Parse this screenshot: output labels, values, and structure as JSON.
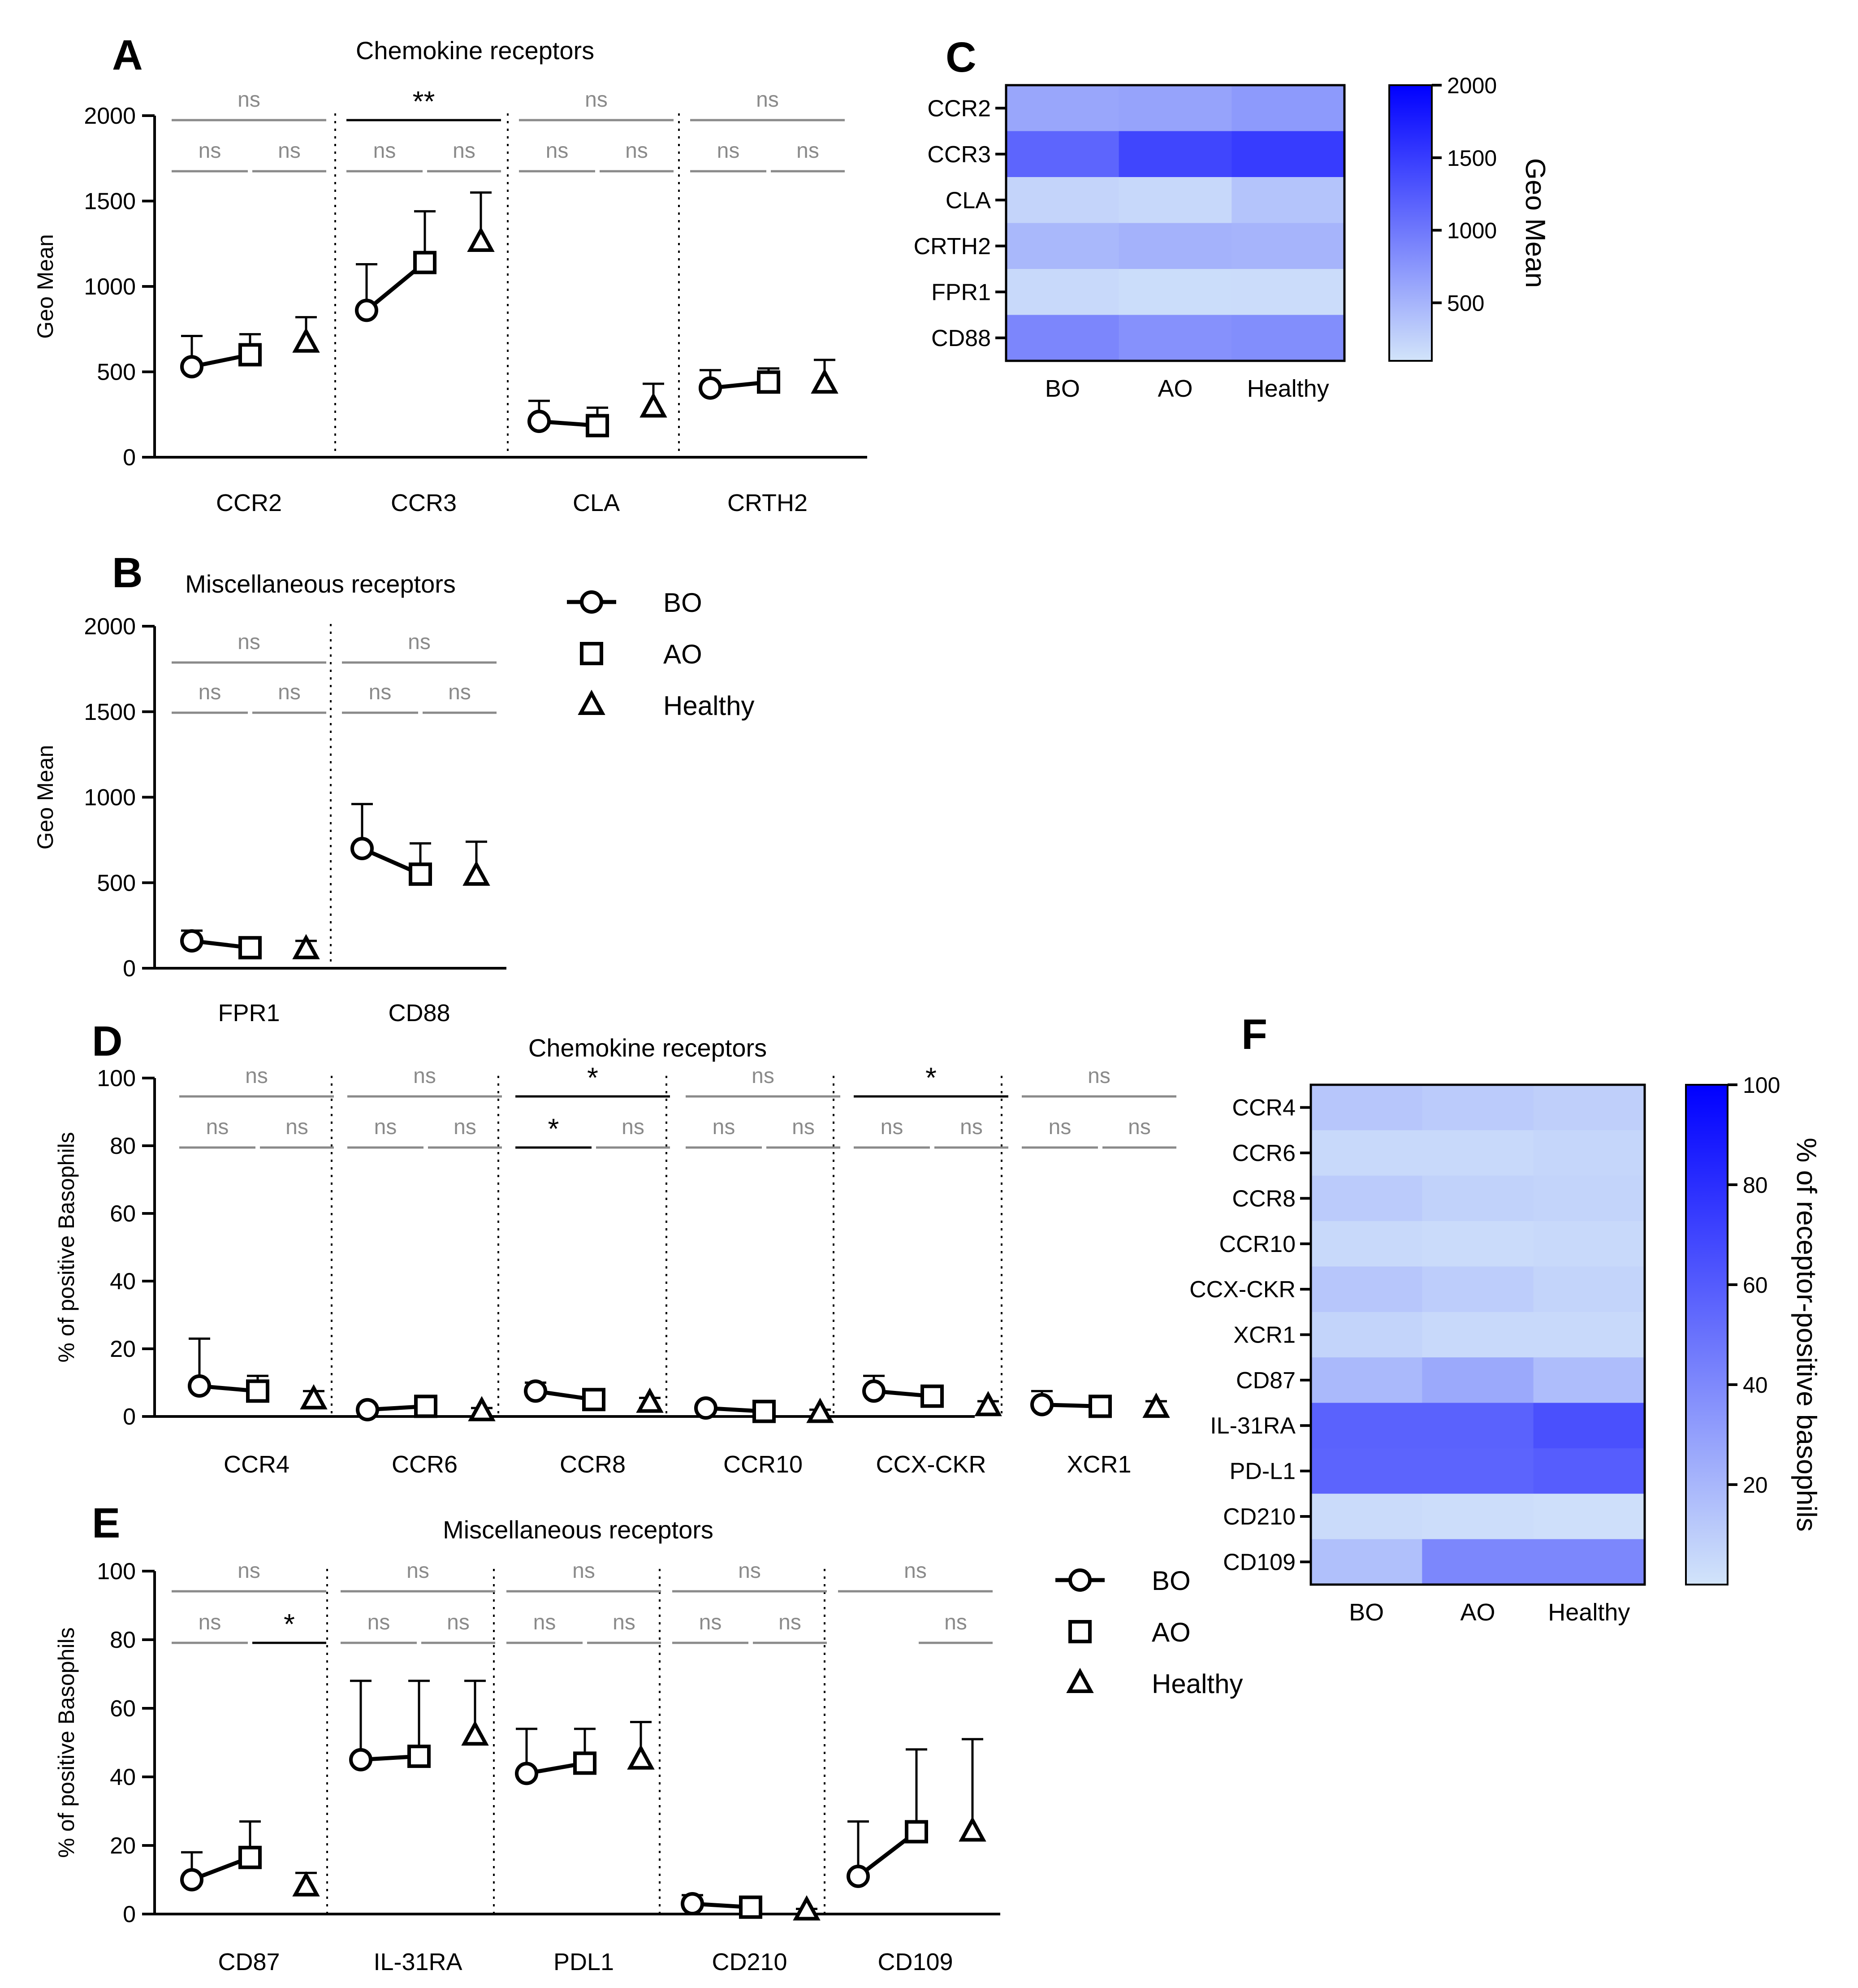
{
  "colors": {
    "heat_low": "#d2e4fa",
    "heat_high": "#0000ff",
    "sig_ns": "#8a8a8a"
  },
  "legend": {
    "items": [
      {
        "label": "BO",
        "marker": "circle"
      },
      {
        "label": "AO",
        "marker": "square"
      },
      {
        "label": "Healthy",
        "marker": "triangle"
      }
    ]
  },
  "chart_data": [
    {
      "panel": "A",
      "type": "scatter",
      "title": "Chemokine receptors",
      "ylabel": "Geo Mean",
      "ylim": [
        0,
        2000
      ],
      "yticks": [
        0,
        500,
        1000,
        1500,
        2000
      ],
      "groups": [
        {
          "name": "CCR2",
          "means": [
            530,
            600,
            670
          ],
          "errs": [
            710,
            720,
            820
          ],
          "sig": [
            {
              "pair": "BO-AO",
              "label": "ns"
            },
            {
              "pair": "AO-Healthy",
              "label": "ns"
            },
            {
              "pair": "BO-Healthy",
              "label": "ns"
            }
          ]
        },
        {
          "name": "CCR3",
          "means": [
            860,
            1140,
            1260
          ],
          "errs": [
            1130,
            1440,
            1550
          ],
          "sig": [
            {
              "pair": "BO-AO",
              "label": "ns"
            },
            {
              "pair": "AO-Healthy",
              "label": "ns"
            },
            {
              "pair": "BO-Healthy",
              "label": "**"
            }
          ]
        },
        {
          "name": "CLA",
          "means": [
            210,
            185,
            290
          ],
          "errs": [
            330,
            290,
            430
          ],
          "sig": [
            {
              "pair": "BO-AO",
              "label": "ns"
            },
            {
              "pair": "AO-Healthy",
              "label": "ns"
            },
            {
              "pair": "BO-Healthy",
              "label": "ns"
            }
          ]
        },
        {
          "name": "CRTH2",
          "means": [
            405,
            440,
            430
          ],
          "errs": [
            510,
            520,
            570
          ],
          "sig": [
            {
              "pair": "BO-AO",
              "label": "ns"
            },
            {
              "pair": "AO-Healthy",
              "label": "ns"
            },
            {
              "pair": "BO-Healthy",
              "label": "ns"
            }
          ]
        }
      ]
    },
    {
      "panel": "B",
      "type": "scatter",
      "title": "Miscellaneous receptors",
      "ylabel": "Geo Mean",
      "ylim": [
        0,
        2000
      ],
      "yticks": [
        0,
        500,
        1000,
        1500,
        2000
      ],
      "groups": [
        {
          "name": "FPR1",
          "means": [
            160,
            120,
            110
          ],
          "errs": [
            220,
            170,
            160
          ],
          "sig": [
            {
              "pair": "BO-AO",
              "label": "ns"
            },
            {
              "pair": "AO-Healthy",
              "label": "ns"
            },
            {
              "pair": "BO-Healthy",
              "label": "ns"
            }
          ]
        },
        {
          "name": "CD88",
          "means": [
            700,
            550,
            540
          ],
          "errs": [
            960,
            730,
            740
          ],
          "sig": [
            {
              "pair": "BO-AO",
              "label": "ns"
            },
            {
              "pair": "AO-Healthy",
              "label": "ns"
            },
            {
              "pair": "BO-Healthy",
              "label": "ns"
            }
          ]
        }
      ]
    },
    {
      "panel": "C",
      "type": "heatmap",
      "rows": [
        "CCR2",
        "CCR3",
        "CLA",
        "CRTH2",
        "FPR1",
        "CD88"
      ],
      "columns": [
        "BO",
        "AO",
        "Healthy"
      ],
      "values": [
        [
          620,
          640,
          720
        ],
        [
          1160,
          1420,
          1500
        ],
        [
          230,
          200,
          370
        ],
        [
          470,
          520,
          500
        ],
        [
          190,
          160,
          165
        ],
        [
          880,
          790,
          820
        ]
      ],
      "colorbar_label": "Geo Mean",
      "colorbar_ticks": [
        500,
        1000,
        1500,
        2000
      ],
      "range": [
        100,
        2000
      ]
    },
    {
      "panel": "D",
      "type": "scatter",
      "title": "Chemokine receptors",
      "ylabel": "% of positive Basophils",
      "ylim": [
        0,
        100
      ],
      "yticks": [
        0,
        20,
        40,
        60,
        80,
        100
      ],
      "groups": [
        {
          "name": "CCR4",
          "means": [
            9,
            7.5,
            5
          ],
          "errs": [
            23,
            12,
            7.5
          ],
          "sig": [
            {
              "pair": "BO-AO",
              "label": "ns"
            },
            {
              "pair": "AO-Healthy",
              "label": "ns"
            },
            {
              "pair": "BO-Healthy",
              "label": "ns"
            }
          ]
        },
        {
          "name": "CCR6",
          "means": [
            2,
            3,
            1.5
          ],
          "errs": [
            3,
            4.5,
            2.5
          ],
          "sig": [
            {
              "pair": "BO-AO",
              "label": "ns"
            },
            {
              "pair": "AO-Healthy",
              "label": "ns"
            },
            {
              "pair": "BO-Healthy",
              "label": "ns"
            }
          ]
        },
        {
          "name": "CCR8",
          "means": [
            7.5,
            5,
            4
          ],
          "errs": [
            10,
            6,
            5.5
          ],
          "sig": [
            {
              "pair": "BO-AO",
              "label": "*"
            },
            {
              "pair": "AO-Healthy",
              "label": "ns"
            },
            {
              "pair": "BO-Healthy",
              "label": "*"
            }
          ]
        },
        {
          "name": "CCR10",
          "means": [
            2.5,
            1.5,
            1
          ],
          "errs": [
            3.5,
            2.5,
            2
          ],
          "sig": [
            {
              "pair": "BO-AO",
              "label": "ns"
            },
            {
              "pair": "AO-Healthy",
              "label": "ns"
            },
            {
              "pair": "BO-Healthy",
              "label": "ns"
            }
          ]
        },
        {
          "name": "CCX-CKR",
          "means": [
            7.5,
            6,
            3
          ],
          "errs": [
            12,
            8,
            4.5
          ],
          "sig": [
            {
              "pair": "BO-AO",
              "label": "ns"
            },
            {
              "pair": "AO-Healthy",
              "label": "ns"
            },
            {
              "pair": "BO-Healthy",
              "label": "*"
            }
          ]
        },
        {
          "name": "XCR1",
          "means": [
            3.5,
            3,
            2.5
          ],
          "errs": [
            7.5,
            4.5,
            4.5
          ],
          "sig": [
            {
              "pair": "BO-AO",
              "label": "ns"
            },
            {
              "pair": "AO-Healthy",
              "label": "ns"
            },
            {
              "pair": "BO-Healthy",
              "label": "ns"
            }
          ]
        }
      ]
    },
    {
      "panel": "E",
      "type": "scatter",
      "title": "Miscellaneous receptors",
      "ylabel": "% of positive Basophils",
      "ylim": [
        0,
        100
      ],
      "yticks": [
        0,
        20,
        40,
        60,
        80,
        100
      ],
      "groups": [
        {
          "name": "CD87",
          "means": [
            10,
            16.5,
            8
          ],
          "errs": [
            18,
            27,
            12
          ],
          "sig": [
            {
              "pair": "BO-AO",
              "label": "ns"
            },
            {
              "pair": "AO-Healthy",
              "label": "*"
            },
            {
              "pair": "BO-Healthy",
              "label": "ns"
            }
          ]
        },
        {
          "name": "IL-31RA",
          "means": [
            45,
            46,
            52
          ],
          "errs": [
            68,
            68,
            68
          ],
          "sig": [
            {
              "pair": "BO-AO",
              "label": "ns"
            },
            {
              "pair": "AO-Healthy",
              "label": "ns"
            },
            {
              "pair": "BO-Healthy",
              "label": "ns"
            }
          ]
        },
        {
          "name": "PDL1",
          "means": [
            41,
            44,
            45
          ],
          "errs": [
            54,
            54,
            56
          ],
          "sig": [
            {
              "pair": "BO-AO",
              "label": "ns"
            },
            {
              "pair": "AO-Healthy",
              "label": "ns"
            },
            {
              "pair": "BO-Healthy",
              "label": "ns"
            }
          ]
        },
        {
          "name": "CD210",
          "means": [
            3,
            2,
            1
          ],
          "errs": [
            5.5,
            2.5,
            1.5
          ],
          "sig": [
            {
              "pair": "BO-AO",
              "label": "ns"
            },
            {
              "pair": "AO-Healthy",
              "label": "ns"
            },
            {
              "pair": "BO-Healthy",
              "label": "ns"
            }
          ]
        },
        {
          "name": "CD109",
          "means": [
            11,
            24,
            24
          ],
          "errs": [
            27,
            48,
            51
          ],
          "sig": [
            {
              "pair": "AO-Healthy",
              "label": "ns"
            },
            {
              "pair": "BO-Healthy",
              "label": "ns"
            }
          ]
        }
      ]
    },
    {
      "panel": "F",
      "type": "heatmap",
      "rows": [
        "CCR4",
        "CCR6",
        "CCR8",
        "CCR10",
        "CCX-CKR",
        "XCR1",
        "CD87",
        "IL-31RA",
        "PD-L1",
        "CD210",
        "CD109"
      ],
      "columns": [
        "BO",
        "AO",
        "Healthy"
      ],
      "values": [
        [
          13,
          11,
          9
        ],
        [
          5,
          5,
          6
        ],
        [
          11,
          8,
          7
        ],
        [
          5,
          4,
          5
        ],
        [
          13,
          10,
          7
        ],
        [
          7,
          5,
          5
        ],
        [
          19,
          26,
          17
        ],
        [
          57,
          57,
          65
        ],
        [
          56,
          56,
          59
        ],
        [
          4,
          3,
          2
        ],
        [
          16,
          41,
          41
        ]
      ],
      "colorbar_label": "% of receptor-positive basophils",
      "colorbar_ticks": [
        20,
        40,
        60,
        80,
        100
      ],
      "range": [
        0,
        100
      ]
    }
  ]
}
